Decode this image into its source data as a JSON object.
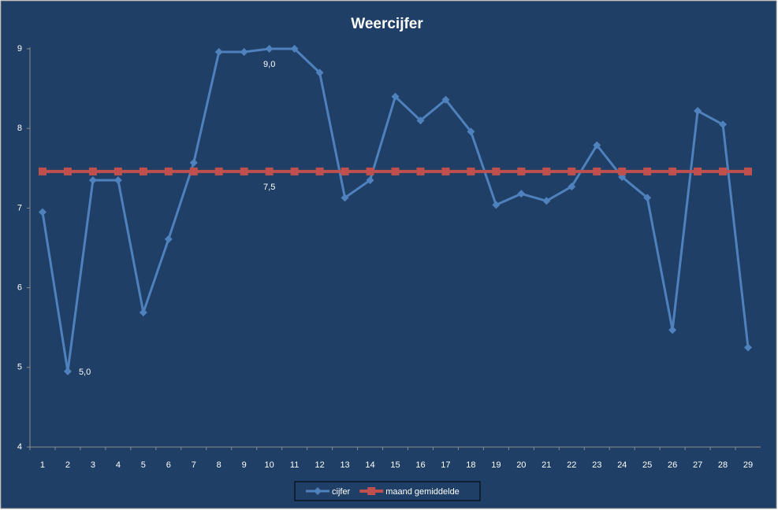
{
  "chart_data": {
    "type": "line",
    "title": "Weercijfer",
    "categories": [
      "1",
      "2",
      "3",
      "4",
      "5",
      "6",
      "7",
      "8",
      "9",
      "10",
      "11",
      "12",
      "13",
      "14",
      "15",
      "16",
      "17",
      "18",
      "19",
      "20",
      "21",
      "22",
      "23",
      "24",
      "25",
      "26",
      "27",
      "28",
      "29"
    ],
    "series": [
      {
        "name": "cijfer",
        "color": "#4f81bd",
        "marker": "diamond",
        "values": [
          6.95,
          4.95,
          7.35,
          7.35,
          5.69,
          6.61,
          7.57,
          8.96,
          8.96,
          9.0,
          9.0,
          8.7,
          7.13,
          7.35,
          8.4,
          8.1,
          8.36,
          7.96,
          7.04,
          7.18,
          7.09,
          7.27,
          7.79,
          7.39,
          7.13,
          5.47,
          8.22,
          8.05,
          5.25
        ],
        "value_labels": [
          null,
          "5,0",
          null,
          null,
          null,
          null,
          null,
          null,
          null,
          "9,0",
          null,
          null,
          null,
          null,
          null,
          null,
          null,
          null,
          null,
          null,
          null,
          null,
          null,
          null,
          null,
          null,
          null,
          null,
          null
        ]
      },
      {
        "name": "maand gemiddelde",
        "color": "#c0504d",
        "marker": "square",
        "values": [
          7.46,
          7.46,
          7.46,
          7.46,
          7.46,
          7.46,
          7.46,
          7.46,
          7.46,
          7.46,
          7.46,
          7.46,
          7.46,
          7.46,
          7.46,
          7.46,
          7.46,
          7.46,
          7.46,
          7.46,
          7.46,
          7.46,
          7.46,
          7.46,
          7.46,
          7.46,
          7.46,
          7.46,
          7.46
        ],
        "value_labels": [
          null,
          null,
          null,
          null,
          null,
          null,
          null,
          null,
          null,
          "7,5",
          null,
          null,
          null,
          null,
          null,
          null,
          null,
          null,
          null,
          null,
          null,
          null,
          null,
          null,
          null,
          null,
          null,
          null,
          null
        ]
      }
    ],
    "ylim": [
      4,
      9
    ],
    "yticks": [
      4,
      5,
      6,
      7,
      8,
      9
    ],
    "grid": false,
    "legend": "bottom"
  }
}
